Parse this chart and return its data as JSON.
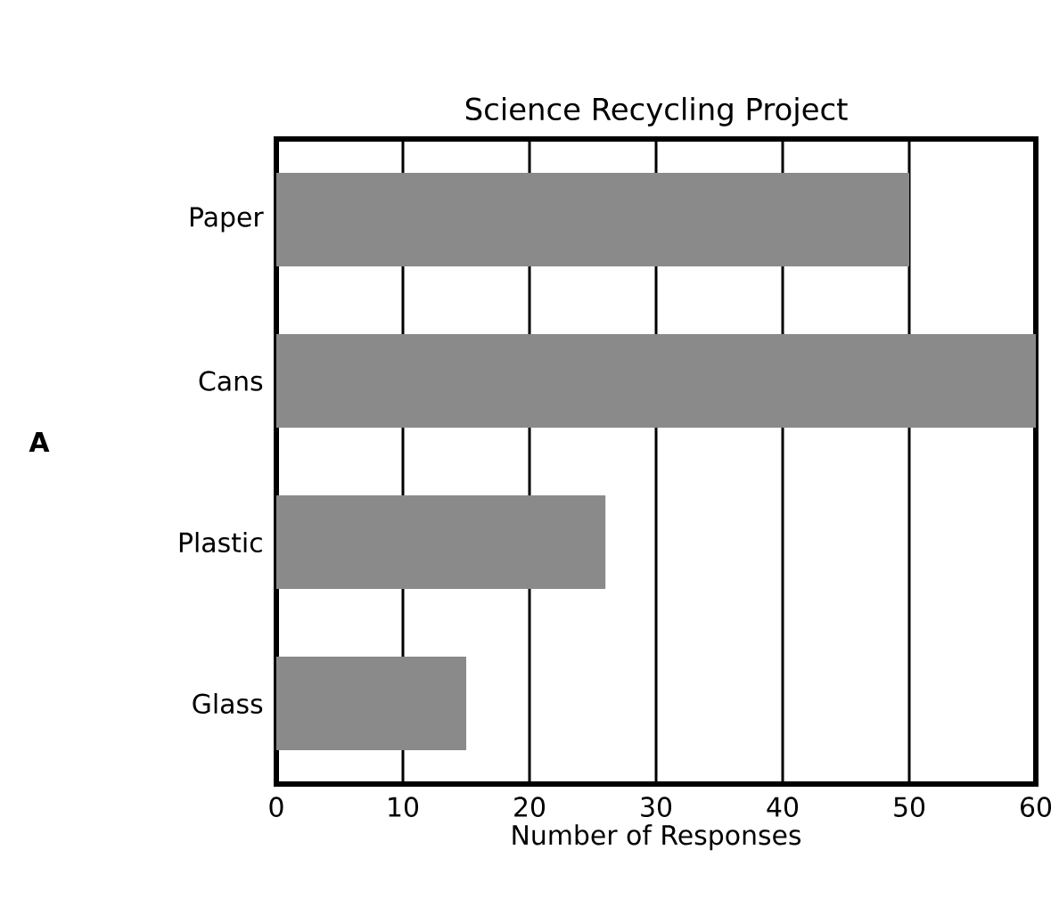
{
  "chart_data": {
    "type": "bar",
    "orientation": "horizontal",
    "title": "Science Recycling Project",
    "xlabel": "Number of Responses",
    "categories": [
      "Paper",
      "Cans",
      "Plastic",
      "Glass"
    ],
    "values": [
      50,
      60,
      26,
      15
    ],
    "color": "#8a8a8a",
    "xlim": [
      0,
      60
    ],
    "xticks": [
      0,
      10,
      20,
      30,
      40,
      50,
      60
    ],
    "grid": "x",
    "annotations": [
      "A"
    ]
  }
}
